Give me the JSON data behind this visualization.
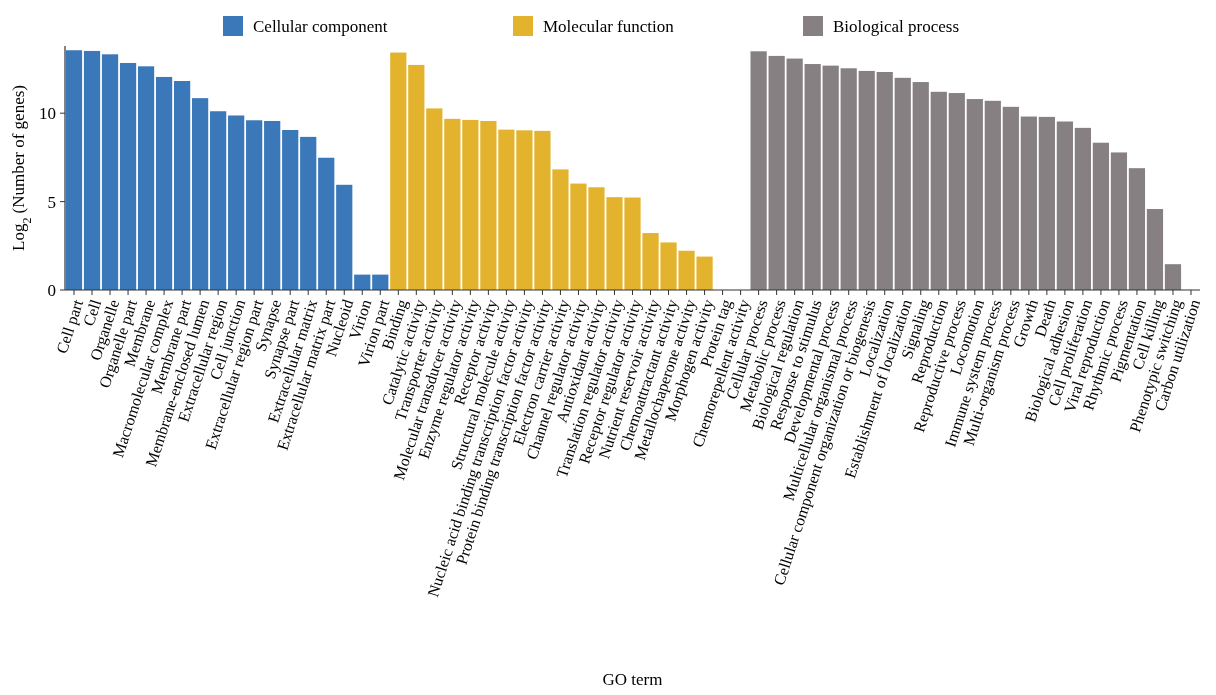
{
  "chart_data": {
    "type": "bar",
    "xlabel": "GO term",
    "ylabel": "Log$_{2}$ (Number of genes)",
    "categories": [
      "Cell part",
      "Cell",
      "Organelle",
      "Organelle part",
      "Membrane",
      "Macromolecular complex",
      "Membrane part",
      "Membrane-enclosed lumen",
      "Extracellular region",
      "Cell junction",
      "Extracellular region part",
      "Synapse",
      "Synapse part",
      "Extracellular matrix",
      "Extracellular matrix part",
      "Nucleoid",
      "Virion",
      "Virion part",
      "Binding",
      "Catalytic activity",
      "Transporter activity",
      "Molecular transducer activity",
      "Enzyme regulator activity",
      "Receptor activity",
      "Structural molecule activity",
      "Nucleic acid binding transcription factor activity",
      "Protein binding transcription factor activity",
      "Electron carrier activity",
      "Channel regulator activity",
      "Antioxidant activity",
      "Translation regulator activity",
      "Receptor regulator activity",
      "Nutrient reservoir activity",
      "Chemoattractant activity",
      "Metallochaperone activity",
      "Morphogen activity",
      "Protein tag",
      "Chemorepellent activity",
      "Cellular process",
      "Metabolic process",
      "Biological regulation",
      "Response to stimulus",
      "Developmental process",
      "Multicellular organismal process",
      "Cellular component organization or biogenesis",
      "Localization",
      "Establishment of localization",
      "Signaling",
      "Reproduction",
      "Reproductive process",
      "Locomotion",
      "Immune system process",
      "Multi-organism process",
      "Growth",
      "Death",
      "Biological adhesion",
      "Cell proliferation",
      "Viral reproduction",
      "Rhythmic process",
      "Pigmentation",
      "Cell killing",
      "Phenotypic switching",
      "Carbon utilization"
    ],
    "series": [
      {
        "name": "Cellular component",
        "color": "#3a78b9",
        "values": [
          13.56,
          13.52,
          13.33,
          12.84,
          12.65,
          12.05,
          11.82,
          10.85,
          10.11,
          9.87,
          9.6,
          9.56,
          9.05,
          8.66,
          7.48,
          5.95,
          0.87,
          0.87,
          null,
          null,
          null,
          null,
          null,
          null,
          null,
          null,
          null,
          null,
          null,
          null,
          null,
          null,
          null,
          null,
          null,
          null,
          null,
          null,
          null,
          null,
          null,
          null,
          null,
          null,
          null,
          null,
          null,
          null,
          null,
          null,
          null,
          null,
          null,
          null,
          null,
          null,
          null,
          null,
          null,
          null,
          null,
          null,
          null
        ]
      },
      {
        "name": "Molecular function",
        "color": "#e3b32d",
        "values": [
          null,
          null,
          null,
          null,
          null,
          null,
          null,
          null,
          null,
          null,
          null,
          null,
          null,
          null,
          null,
          null,
          null,
          null,
          13.43,
          12.73,
          10.27,
          9.68,
          9.62,
          9.56,
          9.07,
          9.03,
          9.0,
          6.82,
          6.02,
          5.81,
          5.25,
          5.23,
          3.22,
          2.69,
          2.22,
          1.89,
          0,
          0,
          null,
          null,
          null,
          null,
          null,
          null,
          null,
          null,
          null,
          null,
          null,
          null,
          null,
          null,
          null,
          null,
          null,
          null,
          null,
          null,
          null,
          null,
          null,
          null,
          null
        ]
      },
      {
        "name": "Biological process",
        "color": "#868083",
        "values": [
          null,
          null,
          null,
          null,
          null,
          null,
          null,
          null,
          null,
          null,
          null,
          null,
          null,
          null,
          null,
          null,
          null,
          null,
          null,
          null,
          null,
          null,
          null,
          null,
          null,
          null,
          null,
          null,
          null,
          null,
          null,
          null,
          null,
          null,
          null,
          null,
          null,
          null,
          13.5,
          13.24,
          13.09,
          12.78,
          12.69,
          12.54,
          12.39,
          12.33,
          12.0,
          11.76,
          11.21,
          11.14,
          10.8,
          10.7,
          10.36,
          9.81,
          9.79,
          9.53,
          9.17,
          8.33,
          7.78,
          6.89,
          4.58,
          1.46,
          0
        ]
      }
    ],
    "ylim": [
      0,
      13.8
    ],
    "yticks": [
      0,
      5,
      10
    ],
    "grid": false,
    "legend": "top"
  }
}
